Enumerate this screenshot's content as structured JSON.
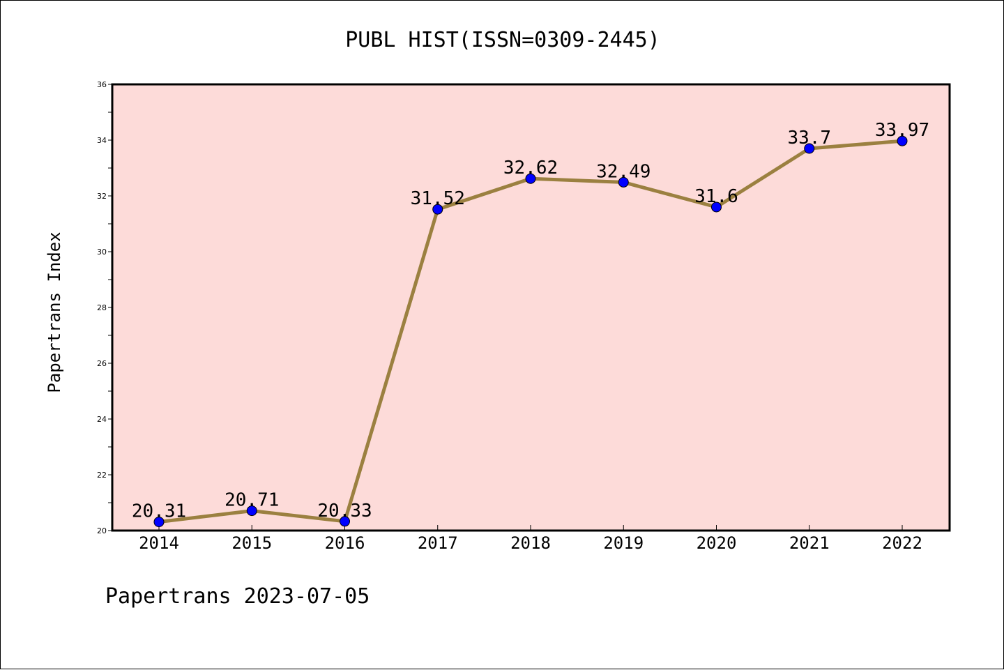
{
  "chart_data": {
    "type": "line",
    "title": "PUBL HIST(ISSN=0309-2445)",
    "ylabel": "Papertrans Index",
    "xlabel": "",
    "x": [
      "2014",
      "2015",
      "2016",
      "2017",
      "2018",
      "2019",
      "2020",
      "2021",
      "2022"
    ],
    "series": [
      {
        "values": [
          20.31,
          20.71,
          20.33,
          31.52,
          32.62,
          32.49,
          31.6,
          33.7,
          33.97
        ],
        "labels": [
          "20.31",
          "20.71",
          "20.33",
          "31.52",
          "32.62",
          "32.49",
          "31.6",
          "33.7",
          "33.97"
        ]
      }
    ],
    "ylim": [
      20,
      36
    ],
    "yticks": [
      "20",
      "22",
      "24",
      "26",
      "28",
      "30",
      "32",
      "34",
      "36"
    ],
    "grid": false,
    "line_color": "#9b8040",
    "marker_color": "#0000ff",
    "plot_background": "#fddbd9"
  },
  "footer": "Papertrans 2023-07-05"
}
